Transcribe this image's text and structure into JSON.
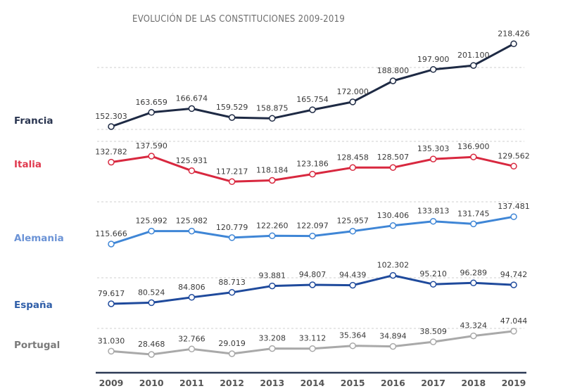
{
  "chart_data": {
    "type": "line",
    "title": "EVOLUCIÓN DE LAS CONSTITUCIONES 2009-2019",
    "xlabel": "",
    "ylabel": "",
    "x": [
      "2009",
      "2010",
      "2011",
      "2012",
      "2013",
      "2014",
      "2015",
      "2016",
      "2017",
      "2018",
      "2019"
    ],
    "grid": "horizontal dashed separators",
    "legend": "left (series labels beside each line)",
    "series": [
      {
        "name": "Francia",
        "color": "#1e2a44",
        "values": [
          152303,
          163659,
          166674,
          159529,
          158875,
          165754,
          172000,
          188800,
          197900,
          201100,
          218426
        ],
        "labels": [
          "152.303",
          "163.659",
          "166.674",
          "159.529",
          "158.875",
          "165.754",
          "172.000",
          "188.800",
          "197.900",
          "201.100",
          "218.426"
        ]
      },
      {
        "name": "Italia",
        "color": "#d8283f",
        "values": [
          132782,
          137590,
          125931,
          117217,
          118184,
          123186,
          128458,
          128507,
          135303,
          136900,
          129562
        ],
        "labels": [
          "132.782",
          "137.590",
          "125.931",
          "117.217",
          "118.184",
          "123.186",
          "128.458",
          "128.507",
          "135.303",
          "136.900",
          "129.562"
        ]
      },
      {
        "name": "Alemania",
        "color": "#3f86d6",
        "values": [
          115666,
          125992,
          125982,
          120779,
          122260,
          122097,
          125957,
          130406,
          133813,
          131745,
          137481
        ],
        "labels": [
          "115.666",
          "125.992",
          "125.982",
          "120.779",
          "122.260",
          "122.097",
          "125.957",
          "130.406",
          "133.813",
          "131.745",
          "137.481"
        ]
      },
      {
        "name": "España",
        "color": "#1f4a9c",
        "values": [
          79617,
          80524,
          84806,
          88713,
          93881,
          94807,
          94439,
          102302,
          95210,
          96289,
          94742
        ],
        "labels": [
          "79.617",
          "80.524",
          "84.806",
          "88.713",
          "93.881",
          "94.807",
          "94.439",
          "102.302",
          "95.210",
          "96.289",
          "94.742"
        ]
      },
      {
        "name": "Portugal",
        "color": "#a9a9a9",
        "values": [
          31030,
          28468,
          32766,
          29019,
          33208,
          33112,
          35364,
          34894,
          38509,
          43324,
          47044
        ],
        "labels": [
          "31.030",
          "28.468",
          "32.766",
          "29.019",
          "33.208",
          "33.112",
          "35.364",
          "34.894",
          "38.509",
          "43.324",
          "47.044"
        ]
      }
    ]
  },
  "label_colors": {
    "Francia": "#2a3550",
    "Italia": "#e0394e",
    "Alemania": "#6b93d6",
    "España": "#2f5ea8",
    "Portugal": "#7a7a7a"
  },
  "axis_color": "#2c3a55",
  "grid_color": "#cfcfcf"
}
